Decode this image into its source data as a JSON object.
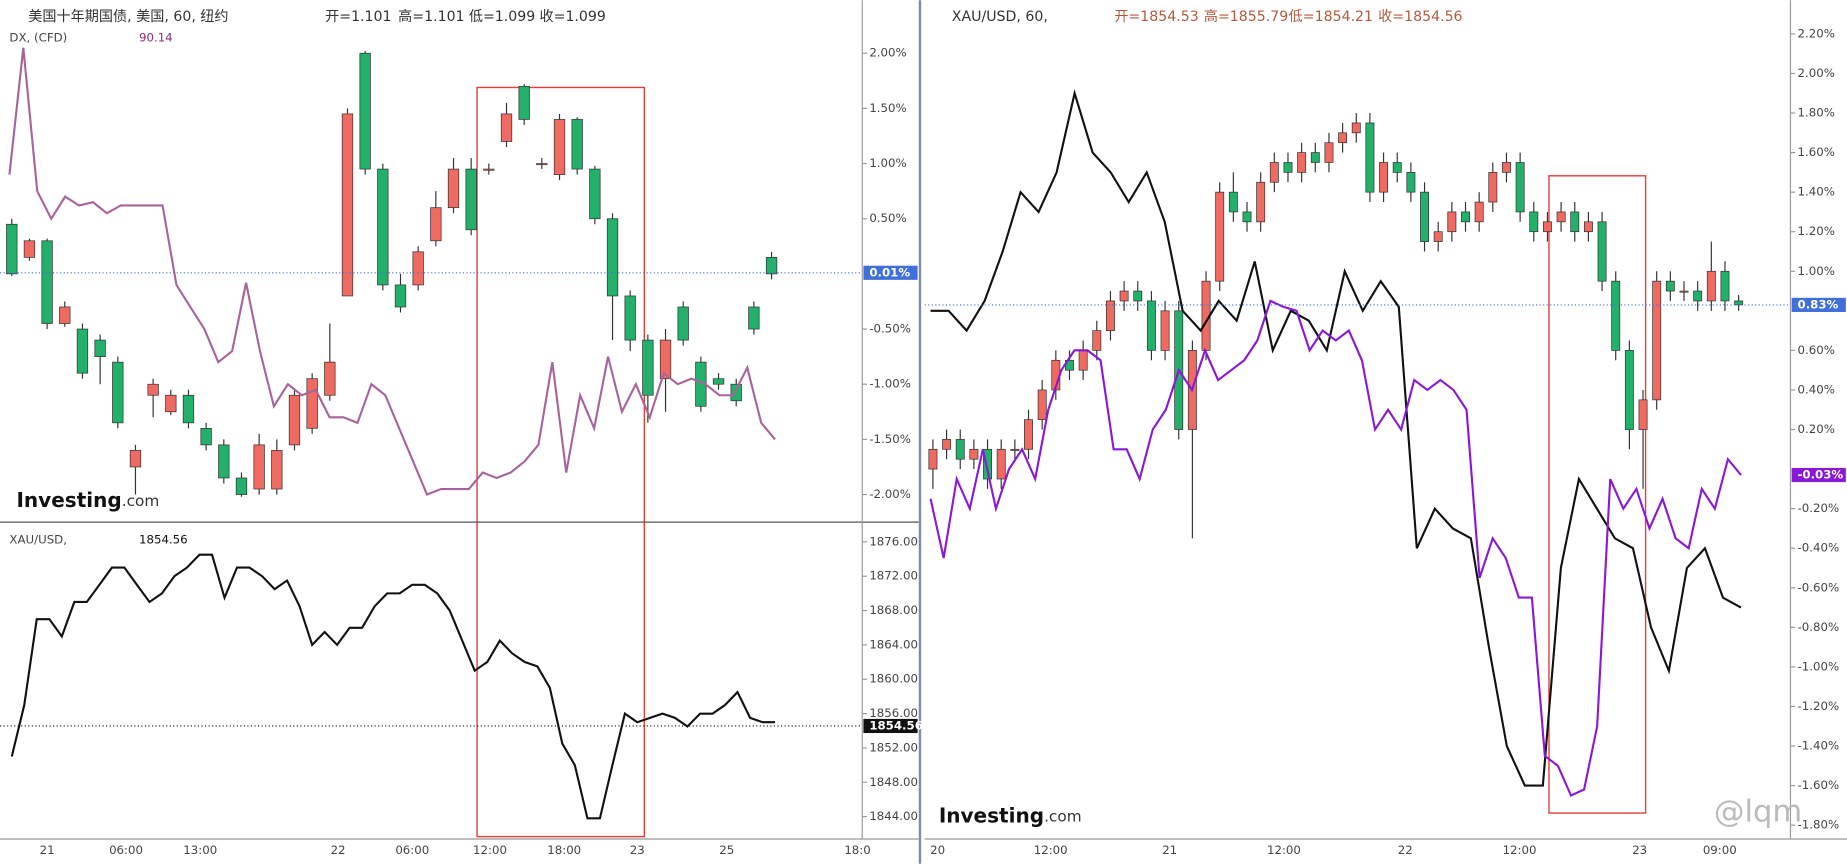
{
  "chart_data": [
    {
      "type": "candlestick",
      "header": [
        "美国十年期国债, 美国, 60, 纽约",
        "开=1.101",
        "高=1.101",
        "低=1.099",
        "收=1.099"
      ],
      "subheader": [
        "DX, (CFD)",
        "90.14"
      ],
      "ylim": [
        -2.25,
        2.48
      ],
      "yticks": [
        {
          "value": 2,
          "label": "2.00%"
        },
        {
          "value": 1.5,
          "label": "1.50%"
        },
        {
          "value": 1,
          "label": "1.00%"
        },
        {
          "value": 0.5,
          "label": "0.50%"
        },
        {
          "value": -0.5,
          "label": "-0.50%"
        },
        {
          "value": -1,
          "label": "-1.00%"
        },
        {
          "value": -1.5,
          "label": "-1.50%"
        },
        {
          "value": -2,
          "label": "-2.00%"
        }
      ],
      "last_labels": [
        {
          "value": 0.01,
          "label": "0.01%",
          "color": "#3f6fd8"
        }
      ],
      "candles": {
        "open": [
          0.45,
          0.15,
          0.3,
          -0.45,
          -0.5,
          -0.6,
          -0.8,
          -1.75,
          -1.1,
          -1.25,
          -1.1,
          -1.4,
          -1.55,
          -1.85,
          -1.95,
          -1.95,
          -1.55,
          -1.4,
          -1.1,
          -0.2,
          2.0,
          0.95,
          -0.1,
          -0.1,
          0.3,
          0.6,
          0.95,
          0.95,
          1.2,
          1.7,
          1.0,
          0.9,
          1.4,
          0.95,
          0.5,
          -0.2,
          -0.6,
          -0.95,
          -0.3,
          -0.8,
          -0.95,
          -1.0,
          -0.3,
          0.15
        ],
        "high": [
          0.5,
          0.32,
          0.32,
          -0.25,
          -0.45,
          -0.55,
          -0.75,
          -1.55,
          -0.95,
          -1.05,
          -1.05,
          -1.35,
          -1.5,
          -1.8,
          -1.45,
          -1.5,
          -1.05,
          -0.9,
          -0.45,
          1.5,
          2.02,
          1.0,
          0.0,
          0.25,
          0.75,
          1.05,
          1.05,
          1.0,
          1.55,
          1.72,
          1.05,
          1.45,
          1.42,
          0.98,
          0.55,
          -0.15,
          -0.55,
          -0.5,
          -0.25,
          -0.75,
          -0.9,
          -0.95,
          -0.25,
          0.2
        ],
        "low": [
          -0.02,
          0.12,
          -0.5,
          -0.48,
          -0.95,
          -1.0,
          -1.4,
          -2.0,
          -1.3,
          -1.28,
          -1.4,
          -1.6,
          -1.9,
          -2.02,
          -2.0,
          -2.0,
          -1.6,
          -1.45,
          -1.15,
          -0.2,
          0.9,
          -0.15,
          -0.35,
          -0.15,
          0.25,
          0.55,
          0.35,
          0.9,
          1.15,
          1.35,
          0.95,
          0.85,
          0.9,
          0.45,
          -0.6,
          -0.7,
          -1.35,
          -1.25,
          -0.65,
          -1.25,
          -1.05,
          -1.2,
          -0.55,
          -0.05
        ],
        "close": [
          0.0,
          0.3,
          -0.45,
          -0.3,
          -0.9,
          -0.75,
          -1.35,
          -1.6,
          -1.0,
          -1.1,
          -1.35,
          -1.55,
          -1.85,
          -2.0,
          -1.55,
          -1.6,
          -1.1,
          -0.95,
          -0.8,
          1.45,
          0.95,
          -0.1,
          -0.3,
          0.2,
          0.6,
          0.95,
          0.4,
          0.95,
          1.45,
          1.4,
          1.0,
          1.4,
          0.95,
          0.5,
          -0.2,
          -0.6,
          -1.1,
          -0.6,
          -0.6,
          -1.2,
          -1.0,
          -1.15,
          -0.5,
          0.0
        ]
      },
      "up_color": "#ef6a60",
      "down_color": "#22b06a",
      "series": [
        {
          "color": "#a8649a",
          "values": [
            0.9,
            2.05,
            0.75,
            0.5,
            0.7,
            0.62,
            0.65,
            0.55,
            0.62,
            0.62,
            0.62,
            0.62,
            -0.1,
            -0.3,
            -0.5,
            -0.8,
            -0.7,
            -0.08,
            -0.7,
            -1.2,
            -1.0,
            -1.1,
            -1.05,
            -1.3,
            -1.3,
            -1.35,
            -1.0,
            -1.1,
            -1.4,
            -1.7,
            -2.0,
            -1.95,
            -1.95,
            -1.95,
            -1.8,
            -1.85,
            -1.8,
            -1.7,
            -1.55,
            -0.8,
            -1.8,
            -1.1,
            -1.4,
            -0.75,
            -1.25,
            -1.0,
            -1.3,
            -0.9,
            -1.0,
            -0.95,
            -1.0,
            -1.1,
            -1.1,
            -0.85,
            -1.35,
            -1.5
          ]
        }
      ],
      "x_labels": [
        "21",
        "06:00",
        "13:00",
        "22",
        "06:00",
        "12:00",
        "18:00",
        "23",
        "25",
        "18:0"
      ],
      "logo": [
        "Investing",
        ".com"
      ]
    },
    {
      "type": "line",
      "header": [
        "XAU/USD,",
        "1854.56"
      ],
      "ylim": [
        1841.4,
        1878.3
      ],
      "yticks": [
        {
          "value": 1876,
          "label": "1876.00"
        },
        {
          "value": 1872,
          "label": "1872.00"
        },
        {
          "value": 1868,
          "label": "1868.00"
        },
        {
          "value": 1864,
          "label": "1864.00"
        },
        {
          "value": 1860,
          "label": "1860.00"
        },
        {
          "value": 1856,
          "label": "1856.00"
        },
        {
          "value": 1852,
          "label": "1852.00"
        },
        {
          "value": 1848,
          "label": "1848.00"
        },
        {
          "value": 1844,
          "label": "1844.00"
        }
      ],
      "last_labels": [
        {
          "value": 1854.56,
          "label": "1854.56",
          "color": "#111111"
        }
      ],
      "series": [
        {
          "color": "#111111",
          "values": [
            1851,
            1857,
            1867,
            1867,
            1865,
            1869,
            1869,
            1871,
            1873,
            1873,
            1871,
            1869,
            1870,
            1872,
            1873,
            1874.5,
            1874.5,
            1869.5,
            1873,
            1873,
            1872,
            1870.5,
            1871.5,
            1868.5,
            1864,
            1865.5,
            1864,
            1866,
            1866,
            1868.5,
            1870,
            1870,
            1871,
            1871,
            1870,
            1868,
            1864.5,
            1861,
            1862,
            1864.5,
            1863,
            1862,
            1861.5,
            1859,
            1852.5,
            1850,
            1843.8,
            1843.8,
            1850,
            1856,
            1855,
            1855.5,
            1856,
            1855.5,
            1854.5,
            1856,
            1856,
            1857,
            1858.5,
            1855.5,
            1855,
            1855
          ]
        }
      ]
    },
    {
      "type": "candlestick",
      "header": [
        "XAU/USD, 60,",
        "开=1854.53",
        "高=1855.79",
        "低=1854.21",
        "收=1854.56"
      ],
      "ylim": [
        -1.87,
        2.37
      ],
      "yticks": [
        {
          "value": 2.2,
          "label": "2.20%"
        },
        {
          "value": 2.0,
          "label": "2.00%"
        },
        {
          "value": 1.8,
          "label": "1.80%"
        },
        {
          "value": 1.6,
          "label": "1.60%"
        },
        {
          "value": 1.4,
          "label": "1.40%"
        },
        {
          "value": 1.2,
          "label": "1.20%"
        },
        {
          "value": 1.0,
          "label": "1.00%"
        },
        {
          "value": 0.6,
          "label": "0.60%"
        },
        {
          "value": 0.4,
          "label": "0.40%"
        },
        {
          "value": 0.2,
          "label": "0.20%"
        },
        {
          "value": -0.2,
          "label": "-0.20%"
        },
        {
          "value": -0.4,
          "label": "-0.40%"
        },
        {
          "value": -0.6,
          "label": "-0.60%"
        },
        {
          "value": -0.8,
          "label": "-0.80%"
        },
        {
          "value": -1.0,
          "label": "-1.00%"
        },
        {
          "value": -1.2,
          "label": "-1.20%"
        },
        {
          "value": -1.4,
          "label": "-1.40%"
        },
        {
          "value": -1.6,
          "label": "-1.60%"
        },
        {
          "value": -1.8,
          "label": "-1.80%"
        }
      ],
      "last_labels": [
        {
          "value": 0.83,
          "label": "0.83%",
          "color": "#3f6fd8"
        },
        {
          "value": -0.03,
          "label": "-0.03%",
          "color": "#8a18d6"
        }
      ],
      "candles": {
        "open": [
          0.0,
          0.1,
          0.15,
          0.05,
          0.1,
          -0.05,
          0.1,
          0.1,
          0.25,
          0.4,
          0.55,
          0.5,
          0.6,
          0.7,
          0.85,
          0.9,
          0.85,
          0.6,
          0.8,
          0.2,
          0.6,
          0.95,
          1.4,
          1.3,
          1.25,
          1.45,
          1.55,
          1.5,
          1.6,
          1.55,
          1.65,
          1.7,
          1.75,
          1.4,
          1.55,
          1.5,
          1.4,
          1.15,
          1.2,
          1.3,
          1.25,
          1.35,
          1.5,
          1.55,
          1.3,
          1.2,
          1.25,
          1.3,
          1.2,
          1.25,
          0.95,
          0.6,
          0.2,
          0.35,
          0.95,
          0.9,
          0.9,
          0.85,
          1.0,
          0.85
        ],
        "high": [
          0.15,
          0.2,
          0.2,
          0.15,
          0.15,
          0.15,
          0.15,
          0.3,
          0.45,
          0.6,
          0.6,
          0.65,
          0.75,
          0.9,
          0.95,
          0.95,
          0.9,
          0.85,
          0.85,
          0.65,
          1.0,
          1.45,
          1.5,
          1.35,
          1.5,
          1.6,
          1.6,
          1.65,
          1.65,
          1.7,
          1.75,
          1.8,
          1.8,
          1.6,
          1.6,
          1.55,
          1.45,
          1.25,
          1.35,
          1.35,
          1.4,
          1.55,
          1.6,
          1.6,
          1.35,
          1.3,
          1.35,
          1.35,
          1.3,
          1.3,
          1.0,
          0.65,
          0.4,
          1.0,
          1.0,
          0.95,
          0.95,
          1.15,
          1.05,
          0.88
        ],
        "low": [
          -0.1,
          0.05,
          0.0,
          0.0,
          -0.1,
          -0.1,
          0.05,
          0.05,
          0.2,
          0.35,
          0.45,
          0.45,
          0.55,
          0.65,
          0.8,
          0.8,
          0.55,
          0.55,
          0.15,
          -0.35,
          0.55,
          0.9,
          1.25,
          1.2,
          1.2,
          1.4,
          1.45,
          1.45,
          1.5,
          1.5,
          1.6,
          1.65,
          1.35,
          1.35,
          1.45,
          1.35,
          1.1,
          1.1,
          1.15,
          1.2,
          1.2,
          1.3,
          1.45,
          1.25,
          1.15,
          1.15,
          1.2,
          1.15,
          1.15,
          0.9,
          0.55,
          0.1,
          -0.1,
          0.3,
          0.85,
          0.85,
          0.8,
          0.8,
          0.8,
          0.8
        ],
        "close": [
          0.1,
          0.15,
          0.05,
          0.1,
          -0.05,
          0.1,
          0.1,
          0.25,
          0.4,
          0.55,
          0.5,
          0.6,
          0.7,
          0.85,
          0.9,
          0.85,
          0.6,
          0.8,
          0.2,
          0.6,
          0.95,
          1.4,
          1.3,
          1.25,
          1.45,
          1.55,
          1.5,
          1.6,
          1.55,
          1.65,
          1.7,
          1.75,
          1.4,
          1.55,
          1.5,
          1.4,
          1.15,
          1.2,
          1.3,
          1.25,
          1.35,
          1.5,
          1.55,
          1.3,
          1.2,
          1.25,
          1.3,
          1.2,
          1.25,
          0.95,
          0.6,
          0.2,
          0.35,
          0.95,
          0.9,
          0.9,
          0.85,
          1.0,
          0.85,
          0.83
        ]
      },
      "up_color": "#ef6a60",
      "down_color": "#22b06a",
      "series": [
        {
          "color": "#111111",
          "values": [
            0.8,
            0.8,
            0.7,
            0.85,
            1.1,
            1.4,
            1.3,
            1.5,
            1.9,
            1.6,
            1.5,
            1.35,
            1.5,
            1.25,
            0.8,
            0.7,
            0.85,
            0.75,
            1.05,
            0.6,
            0.8,
            0.75,
            0.6,
            1.0,
            0.8,
            0.95,
            0.82,
            -0.4,
            -0.2,
            -0.3,
            -0.35,
            -0.9,
            -1.4,
            -1.6,
            -1.6,
            -0.5,
            -0.05,
            -0.2,
            -0.35,
            -0.4,
            -0.8,
            -1.02,
            -0.5,
            -0.4,
            -0.65,
            -0.7
          ]
        },
        {
          "color": "#8a18d6",
          "values": [
            -0.15,
            -0.45,
            -0.05,
            -0.2,
            0.1,
            -0.2,
            0.0,
            0.1,
            -0.05,
            0.3,
            0.5,
            0.6,
            0.6,
            0.55,
            0.1,
            0.1,
            -0.05,
            0.2,
            0.3,
            0.5,
            0.4,
            0.6,
            0.45,
            0.5,
            0.55,
            0.65,
            0.85,
            0.82,
            0.8,
            0.6,
            0.7,
            0.65,
            0.7,
            0.55,
            0.2,
            0.3,
            0.2,
            0.45,
            0.4,
            0.45,
            0.4,
            0.3,
            -0.55,
            -0.35,
            -0.45,
            -0.65,
            -0.65,
            -1.45,
            -1.5,
            -1.65,
            -1.62,
            -1.3,
            -0.05,
            -0.2,
            -0.1,
            -0.3,
            -0.15,
            -0.35,
            -0.4,
            -0.1,
            -0.2,
            0.05,
            -0.03
          ]
        }
      ],
      "x_labels": [
        "20",
        "12:00",
        "21",
        "12:00",
        "22",
        "12:00",
        "23",
        "09:00"
      ],
      "logo": [
        "Investing",
        ".com"
      ],
      "watermark": "@lqm"
    }
  ]
}
